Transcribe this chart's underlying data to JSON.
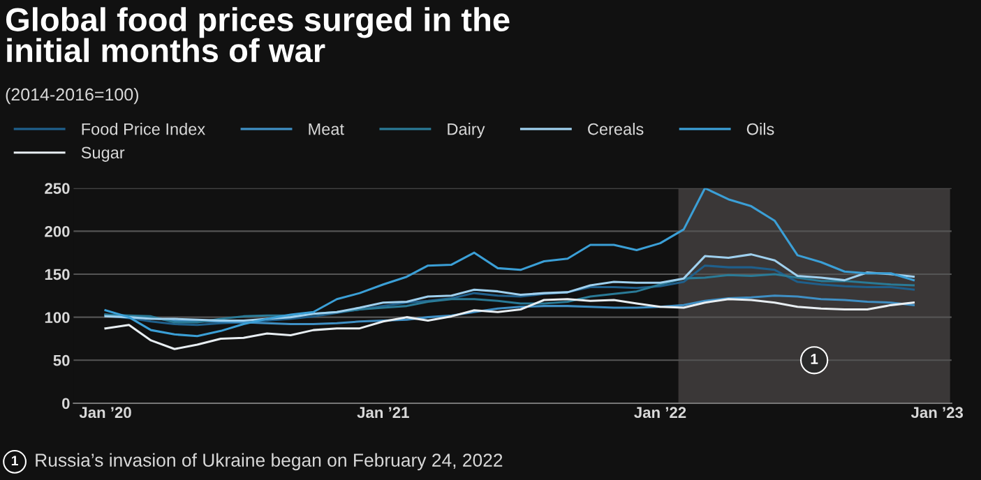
{
  "chart_data": {
    "type": "line",
    "title": "Global food prices surged in the\ninitial months of war",
    "subtitle": "(2014-2016=100)",
    "x": [
      "2020-01",
      "2020-02",
      "2020-03",
      "2020-04",
      "2020-05",
      "2020-06",
      "2020-07",
      "2020-08",
      "2020-09",
      "2020-10",
      "2020-11",
      "2020-12",
      "2021-01",
      "2021-02",
      "2021-03",
      "2021-04",
      "2021-05",
      "2021-06",
      "2021-07",
      "2021-08",
      "2021-09",
      "2021-10",
      "2021-11",
      "2021-12",
      "2022-01",
      "2022-02",
      "2022-03",
      "2022-04",
      "2022-05",
      "2022-06",
      "2022-07",
      "2022-08",
      "2022-09",
      "2022-10",
      "2022-11",
      "2022-12"
    ],
    "series": [
      {
        "name": "Food Price Index",
        "color": "#1f5f8b",
        "values": [
          102,
          99,
          95,
          92,
          91,
          93,
          94,
          96,
          98,
          101,
          105,
          109,
          113,
          117,
          119,
          122,
          128,
          125,
          124,
          127,
          129,
          135,
          135,
          134,
          136,
          141,
          160,
          158,
          158,
          155,
          141,
          138,
          136,
          135,
          135,
          132
        ]
      },
      {
        "name": "Meat",
        "color": "#3f8fc4",
        "values": [
          103,
          100,
          99,
          96,
          95,
          95,
          94,
          93,
          92,
          92,
          93,
          95,
          96,
          97,
          100,
          102,
          106,
          110,
          112,
          113,
          113,
          112,
          111,
          111,
          112,
          114,
          119,
          122,
          123,
          125,
          124,
          121,
          120,
          118,
          117,
          114
        ]
      },
      {
        "name": "Dairy",
        "color": "#2a7a96",
        "values": [
          103,
          102,
          101,
          94,
          94,
          98,
          101,
          102,
          102,
          104,
          106,
          109,
          111,
          113,
          118,
          121,
          121,
          119,
          116,
          116,
          118,
          124,
          127,
          130,
          138,
          145,
          146,
          149,
          148,
          150,
          146,
          142,
          142,
          140,
          138,
          137
        ]
      },
      {
        "name": "Cereals",
        "color": "#9fd0ee",
        "values": [
          101,
          100,
          98,
          98,
          97,
          96,
          96,
          98,
          100,
          104,
          106,
          111,
          117,
          118,
          124,
          125,
          132,
          130,
          126,
          128,
          129,
          137,
          141,
          140,
          140,
          145,
          171,
          169,
          173,
          166,
          148,
          146,
          143,
          152,
          150,
          147
        ]
      },
      {
        "name": "Oils",
        "color": "#3b9fd6",
        "values": [
          108,
          100,
          85,
          80,
          78,
          84,
          92,
          98,
          103,
          106,
          121,
          128,
          138,
          147,
          160,
          161,
          175,
          157,
          155,
          165,
          168,
          184,
          184,
          178,
          186,
          202,
          250,
          237,
          229,
          212,
          172,
          164,
          153,
          151,
          151,
          143
        ]
      },
      {
        "name": "Sugar",
        "color": "#e8eef2",
        "values": [
          87,
          91,
          73,
          63,
          68,
          75,
          76,
          81,
          79,
          85,
          87,
          87,
          95,
          100,
          96,
          101,
          108,
          106,
          109,
          120,
          121,
          119,
          120,
          116,
          112,
          111,
          117,
          121,
          120,
          117,
          112,
          110,
          109,
          109,
          114,
          117
        ]
      }
    ],
    "xlim": [
      "2019-11-20",
      "2023-01-20"
    ],
    "xticks": [
      {
        "value": "2020-01-01",
        "label": "Jan ’20"
      },
      {
        "value": "2021-01-01",
        "label": "Jan ’21"
      },
      {
        "value": "2022-01-01",
        "label": "Jan ’22"
      },
      {
        "value": "2023-01-01",
        "label": "Jan ’23"
      }
    ],
    "ylim": [
      0,
      250
    ],
    "yticks": [
      0,
      50,
      100,
      150,
      200,
      250
    ],
    "bands": [
      {
        "axis": "x",
        "from": "2022-01-25",
        "to": "2023-01-18",
        "label": "1",
        "color": "#3a3737"
      }
    ],
    "annotations": [
      "1",
      "Russia’s invasion of Ukraine began on February 24, 2022"
    ],
    "grid": "y",
    "legend": "top",
    "line_style": "solid"
  }
}
